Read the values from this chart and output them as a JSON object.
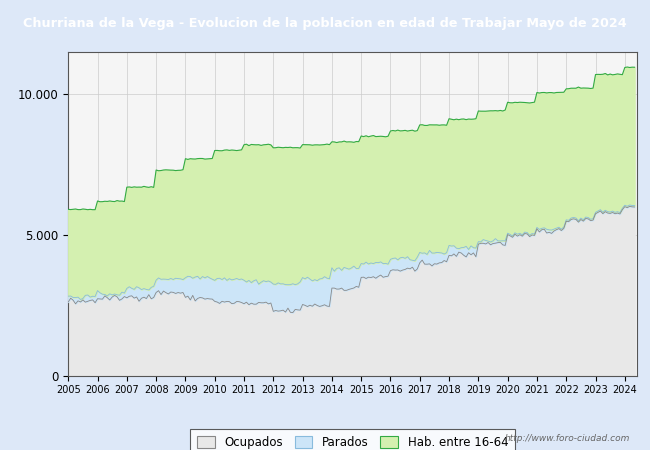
{
  "title": "Churriana de la Vega - Evolucion de la poblacion en edad de Trabajar Mayo de 2024",
  "title_bg": "#4472c4",
  "title_color": "#ffffff",
  "watermark": "http://www.foro-ciudad.com",
  "ylim": [
    0,
    11500
  ],
  "yticks": [
    0,
    5000,
    10000
  ],
  "ytick_labels": [
    "0",
    "5.000",
    "10.000"
  ],
  "plot_bg": "#f5f5f5",
  "fig_bg": "#dde8f8",
  "color_hab": "#d4f0b0",
  "color_hab_line": "#33aa44",
  "color_parados": "#cce5f8",
  "color_parados_line": "#88bbdd",
  "color_ocupados": "#e8e8e8",
  "color_ocupados_line": "#888888",
  "legend_labels": [
    "Ocupados",
    "Parados",
    "Hab. entre 16-64"
  ],
  "legend_facecolors": [
    "#e8e8e8",
    "#cce5f8",
    "#d4f0b0"
  ],
  "legend_edgecolors": [
    "#888888",
    "#88bbdd",
    "#33aa44"
  ],
  "hab_16_64_annual": [
    5900,
    6200,
    6700,
    7300,
    7700,
    8000,
    8200,
    8100,
    8200,
    8300,
    8500,
    8700,
    8900,
    9100,
    9400,
    9700,
    10050,
    10200,
    10700,
    10950,
    11150
  ],
  "ocupados_annual": [
    2650,
    2750,
    2800,
    2950,
    2750,
    2600,
    2550,
    2300,
    2500,
    3100,
    3500,
    3750,
    4000,
    4300,
    4700,
    4950,
    5150,
    5550,
    5800,
    6000,
    6300
  ],
  "parados_annual": [
    2800,
    2900,
    3100,
    3450,
    3500,
    3450,
    3350,
    3250,
    3450,
    3800,
    4000,
    4150,
    4350,
    4550,
    4800,
    4950,
    5200,
    5450,
    5650,
    5800,
    5950
  ],
  "noise_scale": 40,
  "year_start": 2005,
  "year_end": 2024,
  "months_per_year": 12
}
